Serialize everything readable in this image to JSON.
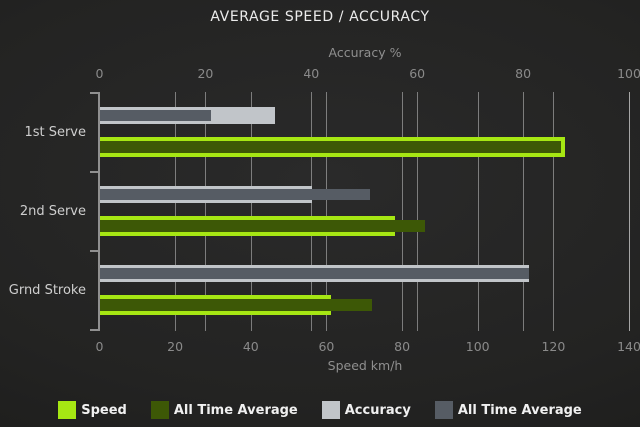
{
  "chart_data": {
    "type": "bar",
    "orientation": "horizontal",
    "title": "AVERAGE SPEED / ACCURACY",
    "categories": [
      "1st Serve",
      "2nd Serve",
      "Grnd Stroke"
    ],
    "axes": {
      "top": {
        "label": "Accuracy %",
        "ticks": [
          0,
          20,
          40,
          60,
          80,
          100
        ],
        "range": [
          0,
          100
        ]
      },
      "bottom": {
        "label": "Speed km/h",
        "ticks": [
          0,
          20,
          40,
          60,
          80,
          100,
          120,
          140
        ],
        "range": [
          0,
          140
        ]
      }
    },
    "series": [
      {
        "name": "Speed",
        "axis": "bottom",
        "color": "#a6e713",
        "values": [
          123,
          78,
          61
        ]
      },
      {
        "name": "All Time Average",
        "axis": "bottom",
        "color": "#3d5806",
        "values": [
          122,
          86,
          72
        ]
      },
      {
        "name": "Accuracy",
        "axis": "top",
        "color": "#c1c5c9",
        "values": [
          33,
          40,
          81
        ]
      },
      {
        "name": "All Time Average",
        "axis": "top",
        "color": "#565c64",
        "values": [
          21,
          51,
          81
        ]
      }
    ],
    "grid": true,
    "legend_position": "bottom"
  },
  "legend": {
    "items": [
      {
        "label": "Speed",
        "color": "#a6e713"
      },
      {
        "label": "All Time Average",
        "color": "#3d5806"
      },
      {
        "label": "Accuracy",
        "color": "#c1c5c9"
      },
      {
        "label": "All Time Average",
        "color": "#565c64"
      }
    ]
  }
}
